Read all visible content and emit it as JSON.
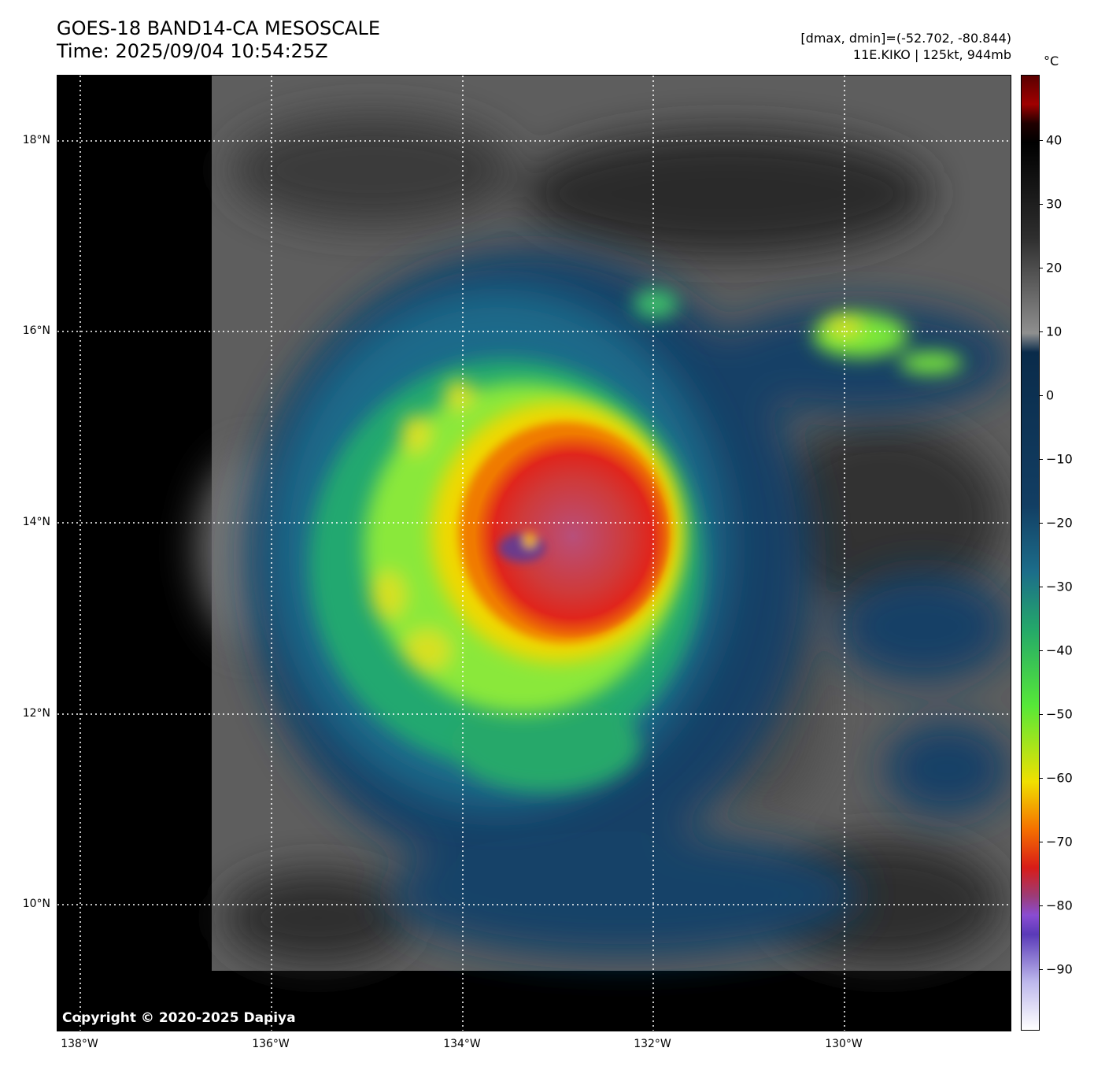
{
  "header": {
    "title_line1": "GOES-18 BAND14-CA MESOSCALE",
    "title_line2": "Time: 2025/09/04 10:54:25Z",
    "dminmax": "[dmax, dmin]=(-52.702, -80.844)",
    "storm": "11E.KIKO | 125kt, 944mb"
  },
  "map": {
    "copyright": "Copyright © 2020-2025 Dapiya",
    "lat_labels": [
      "18°N",
      "16°N",
      "14°N",
      "12°N",
      "10°N"
    ],
    "lon_labels": [
      "138°W",
      "136°W",
      "134°W",
      "132°W",
      "130°W"
    ]
  },
  "colorbar": {
    "unit": "°C",
    "ticks": [
      "40",
      "30",
      "20",
      "10",
      "0",
      "−10",
      "−20",
      "−30",
      "−40",
      "−50",
      "−60",
      "−70",
      "−80",
      "−90"
    ]
  }
}
